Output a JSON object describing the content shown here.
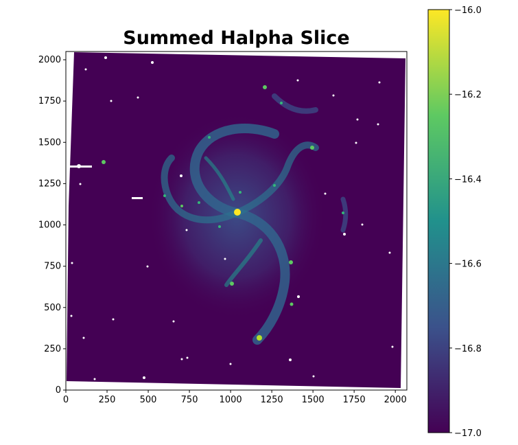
{
  "title": "Summed Halpha Slice",
  "image": {
    "x_ticks": [
      "0",
      "250",
      "500",
      "750",
      "1000",
      "1250",
      "1500",
      "1750",
      "2000"
    ],
    "x_tick_values": [
      0,
      250,
      500,
      750,
      1000,
      1250,
      1500,
      1750,
      2000
    ],
    "y_ticks": [
      "0",
      "250",
      "500",
      "750",
      "1000",
      "1250",
      "1500",
      "1750",
      "2000"
    ],
    "y_tick_values": [
      0,
      250,
      500,
      750,
      1000,
      1250,
      1500,
      1750,
      2000
    ],
    "xlim": [
      0,
      2070
    ],
    "ylim": [
      0,
      2050
    ],
    "background_color": "#440154",
    "colormap": "viridis"
  },
  "colorbar": {
    "ticks": [
      "−16.0",
      "−16.2",
      "−16.4",
      "−16.6",
      "−16.8",
      "−17.0"
    ],
    "tick_values": [
      -16.0,
      -16.2,
      -16.4,
      -16.6,
      -16.8,
      -17.0
    ],
    "range": [
      -17.0,
      -16.0
    ],
    "colors": [
      "#440154",
      "#3b528b",
      "#21918c",
      "#5ec962",
      "#fde725"
    ]
  }
}
